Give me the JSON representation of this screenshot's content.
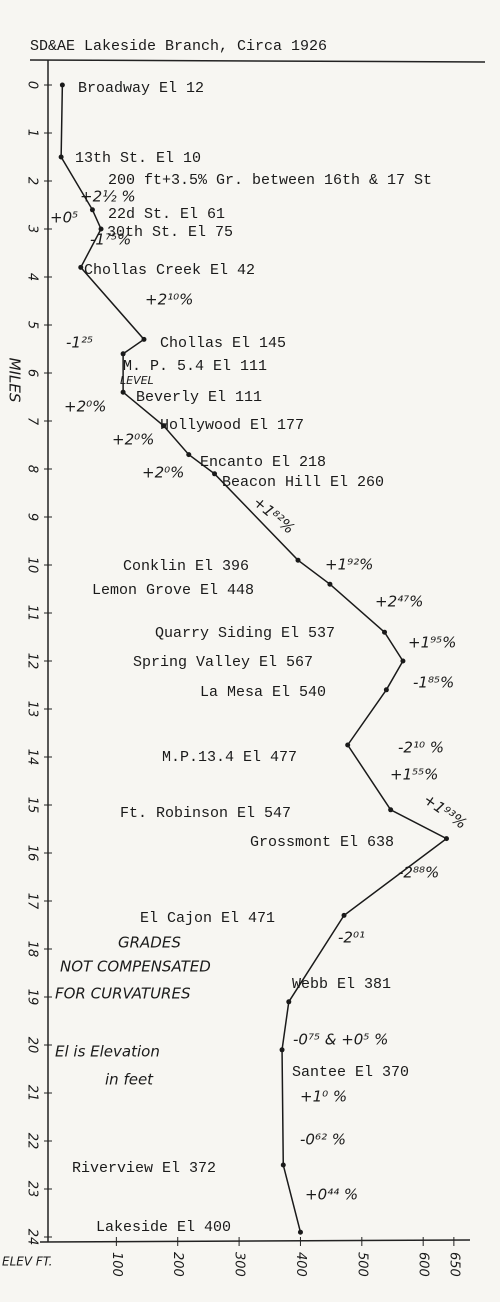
{
  "chart_data": {
    "type": "line",
    "title": "SD&AE Lakeside Branch, Circa 1926",
    "y_label": "MILES",
    "x_label": "ELEV FT.",
    "ylim": [
      0,
      24
    ],
    "yticks": [
      0,
      1,
      2,
      3,
      4,
      5,
      6,
      7,
      8,
      9,
      10,
      11,
      12,
      13,
      14,
      15,
      16,
      17,
      18,
      19,
      20,
      21,
      22,
      23,
      24
    ],
    "xlim": [
      0,
      660
    ],
    "xticks": [
      100,
      200,
      300,
      400,
      500,
      600,
      650
    ],
    "color": "#1a1a1a",
    "stations": [
      "Broadway El 12",
      "13th St. El 10",
      "22d St. El 61",
      "30th St. El 75",
      "Chollas Creek El 42",
      "Chollas El 145",
      "M. P. 5.4 El 111",
      "Beverly El 111",
      "Hollywood El 177",
      "Encanto El 218",
      "Beacon Hill El 260",
      "Conklin El 396",
      "Lemon Grove El 448",
      "Quarry Siding El 537",
      "Spring Valley El 567",
      "La Mesa El 540",
      "M.P.13.4 El 477",
      "Ft. Robinson El 547",
      "Grossmont El 638",
      "El Cajon El 471",
      "Webb El 381",
      "Santee El 370",
      "Riverview El 372",
      "Lakeside El 400"
    ],
    "miles": [
      0,
      1.5,
      2.6,
      3.0,
      3.8,
      5.3,
      5.6,
      6.4,
      7.1,
      7.7,
      8.1,
      9.9,
      10.4,
      11.4,
      12.0,
      12.6,
      13.75,
      15.1,
      15.7,
      17.3,
      19.1,
      20.1,
      22.5,
      23.9
    ],
    "values": [
      12,
      10,
      61,
      75,
      42,
      145,
      111,
      111,
      177,
      218,
      260,
      396,
      448,
      537,
      567,
      540,
      477,
      547,
      638,
      471,
      381,
      370,
      372,
      400
    ],
    "annotations": [
      "200 ft+3.5% Gr. between 16th & 17 St",
      "+2½ %",
      "+0⁵",
      "-1⁷⁵%",
      "+2¹⁰%",
      "-1²⁵",
      "LEVEL",
      "+2⁰%",
      "+2⁰%",
      "+2⁰%",
      "+1⁸²%",
      "+1⁹²%",
      "+2⁴⁷%",
      "+1⁹⁵%",
      "-1⁸⁵%",
      "-2¹⁰ %",
      "+1⁵⁵%",
      "+1⁹³%",
      "-2⁸⁸%",
      "-2⁰¹",
      "-0⁷⁵ & +0⁵ %",
      "+1⁰ %",
      "-0⁶² %",
      "+0⁴⁴ %",
      "GRADES",
      "NOT COMPENSATED",
      "FOR CURVATURES",
      "El is Elevation",
      "in feet"
    ]
  }
}
